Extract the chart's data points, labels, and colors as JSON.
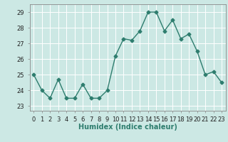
{
  "x": [
    0,
    1,
    2,
    3,
    4,
    5,
    6,
    7,
    8,
    9,
    10,
    11,
    12,
    13,
    14,
    15,
    16,
    17,
    18,
    19,
    20,
    21,
    22,
    23
  ],
  "y": [
    25.0,
    24.0,
    23.5,
    24.7,
    23.5,
    23.5,
    24.4,
    23.5,
    23.5,
    24.0,
    26.2,
    27.3,
    27.2,
    27.8,
    29.0,
    29.0,
    27.8,
    28.5,
    27.3,
    27.6,
    26.5,
    25.0,
    25.2,
    24.5
  ],
  "line_color": "#2e7d6e",
  "marker": "D",
  "marker_size": 2.5,
  "line_width": 1.0,
  "bg_color": "#cce8e4",
  "grid_color": "#ffffff",
  "xlabel": "Humidex (Indice chaleur)",
  "xlabel_fontsize": 7,
  "tick_fontsize": 6,
  "ylim": [
    22.7,
    29.5
  ],
  "yticks": [
    23,
    24,
    25,
    26,
    27,
    28,
    29
  ],
  "xlim": [
    -0.5,
    23.5
  ]
}
